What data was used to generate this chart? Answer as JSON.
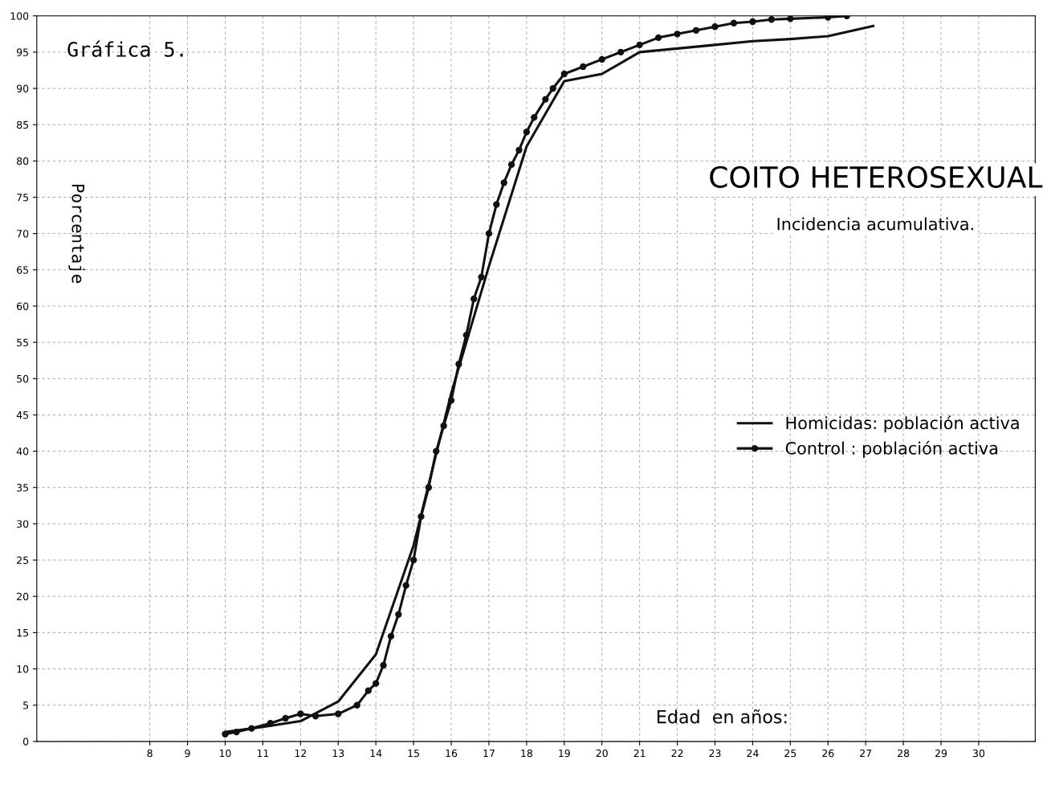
{
  "chart_data": {
    "type": "line",
    "title": "COITO HETEROSEXUAL",
    "subtitle": "Incidencia acumulativa.",
    "xlabel": "Edad  en años:",
    "ylabel": "Porcentaje",
    "annotations": [
      "Gráfica 5."
    ],
    "xlim": [
      5,
      31.5
    ],
    "ylim": [
      0,
      100
    ],
    "xticks": [
      8,
      9,
      10,
      11,
      12,
      13,
      14,
      15,
      16,
      17,
      18,
      19,
      20,
      21,
      22,
      23,
      24,
      25,
      26,
      27,
      28,
      29,
      30
    ],
    "yticks": [
      0,
      5,
      10,
      15,
      20,
      25,
      30,
      35,
      40,
      45,
      50,
      55,
      60,
      65,
      70,
      75,
      80,
      85,
      90,
      95,
      100
    ],
    "grid": true,
    "legend": "right",
    "line_style": "solid",
    "series": [
      {
        "name": "Homicidas: población activa",
        "color": "#111111",
        "marker": "none",
        "x": [
          10,
          11,
          12,
          13,
          14,
          15,
          16,
          17,
          18,
          19,
          20,
          21,
          22,
          23,
          24,
          25,
          26,
          27.2
        ],
        "values": [
          1.3,
          2,
          2.8,
          5.5,
          12,
          27,
          48,
          65.5,
          82,
          91,
          92,
          95,
          95.5,
          96,
          96.5,
          96.8,
          97.2,
          98.6
        ]
      },
      {
        "name": "Control : población activa",
        "color": "#111111",
        "marker": "circle",
        "x": [
          10,
          10.3,
          10.7,
          11.2,
          11.6,
          12,
          12.4,
          13,
          13.5,
          13.8,
          14,
          14.2,
          14.4,
          14.6,
          14.8,
          15,
          15.2,
          15.4,
          15.6,
          15.8,
          16,
          16.2,
          16.4,
          16.6,
          16.8,
          17,
          17.2,
          17.4,
          17.6,
          17.8,
          18,
          18.2,
          18.5,
          18.7,
          19,
          19.5,
          20,
          20.5,
          21,
          21.5,
          22,
          22.5,
          23,
          23.5,
          24,
          24.5,
          25,
          26,
          26.5
        ],
        "values": [
          1,
          1.3,
          1.8,
          2.5,
          3.2,
          3.8,
          3.5,
          3.8,
          5,
          7,
          8,
          10.5,
          14.5,
          17.5,
          21.5,
          25,
          31,
          35,
          40,
          43.5,
          47,
          52,
          56,
          61,
          64,
          70,
          74,
          77,
          79.5,
          81.5,
          84,
          86,
          88.5,
          90,
          92,
          93,
          94,
          95,
          96,
          97,
          97.5,
          98,
          98.5,
          99,
          99.2,
          99.5,
          99.6,
          99.8,
          100
        ]
      }
    ]
  }
}
